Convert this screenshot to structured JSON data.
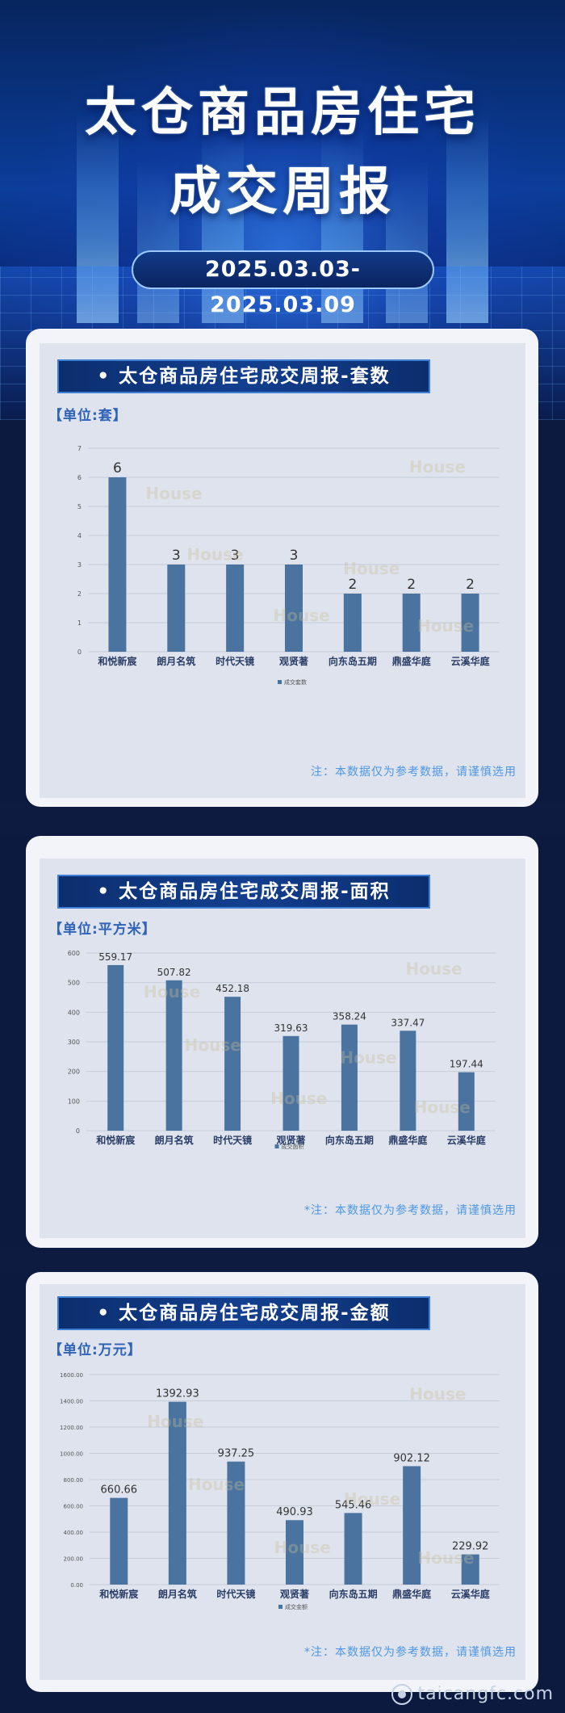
{
  "header": {
    "title_line1": "太仓商品房住宅",
    "title_line2": "成交周报",
    "date_range": "2025.03.03-2025.03.09"
  },
  "charts": [
    {
      "title": "• 太仓商品房住宅成交周报-套数",
      "unit": "【单位:套】",
      "note": "注：本数据仅为参考数据，请谨慎选用"
    },
    {
      "title": "• 太仓商品房住宅成交周报-面积",
      "unit": "【单位:平方米】",
      "note": "*注：本数据仅为参考数据，请谨慎选用"
    },
    {
      "title": "• 太仓商品房住宅成交周报-金额",
      "unit": "【单位:万元】",
      "note": "*注：本数据仅为参考数据，请谨慎选用"
    }
  ],
  "chart_data": [
    {
      "type": "bar",
      "categories": [
        "和悦新宸",
        "朗月名筑",
        "时代天镜",
        "观贤著",
        "向东岛五期",
        "鼎盛华庭",
        "云溪华庭"
      ],
      "values": [
        6,
        3,
        3,
        3,
        2,
        2,
        2
      ],
      "value_labels": [
        "6",
        "3",
        "3",
        "3",
        "2",
        "2",
        "2"
      ],
      "series_name": "成交套数",
      "yticks": [
        "0",
        "1",
        "2",
        "3",
        "4",
        "5",
        "6",
        "7"
      ],
      "ylim": [
        0,
        7
      ],
      "color": "#4b73a0"
    },
    {
      "type": "bar",
      "categories": [
        "和悦新宸",
        "朗月名筑",
        "时代天镜",
        "观贤著",
        "向东岛五期",
        "鼎盛华庭",
        "云溪华庭"
      ],
      "values": [
        559.17,
        507.82,
        452.18,
        319.63,
        358.24,
        337.47,
        197.44
      ],
      "value_labels": [
        "559.17",
        "507.82",
        "452.18",
        "319.63",
        "358.24",
        "337.47",
        "197.44"
      ],
      "series_name": "成交面积",
      "yticks": [
        "0",
        "100",
        "200",
        "300",
        "400",
        "500",
        "600"
      ],
      "ylim": [
        0,
        600
      ],
      "color": "#4b73a0"
    },
    {
      "type": "bar",
      "categories": [
        "和悦新宸",
        "朗月名筑",
        "时代天镜",
        "观贤著",
        "向东岛五期",
        "鼎盛华庭",
        "云溪华庭"
      ],
      "values": [
        660.66,
        1392.93,
        937.25,
        490.93,
        545.46,
        902.12,
        229.92
      ],
      "value_labels": [
        "660.66",
        "1392.93",
        "937.25",
        "490.93",
        "545.46",
        "902.12",
        "229.92"
      ],
      "series_name": "成交金额",
      "yticks": [
        "0.00",
        "200.00",
        "400.00",
        "600.00",
        "800.00",
        "1000.00",
        "1200.00",
        "1400.00",
        "1600.00"
      ],
      "ylim": [
        0,
        1600
      ],
      "color": "#4b73a0"
    }
  ],
  "watermark": "House",
  "footer": {
    "site": "taicangfc.com"
  }
}
